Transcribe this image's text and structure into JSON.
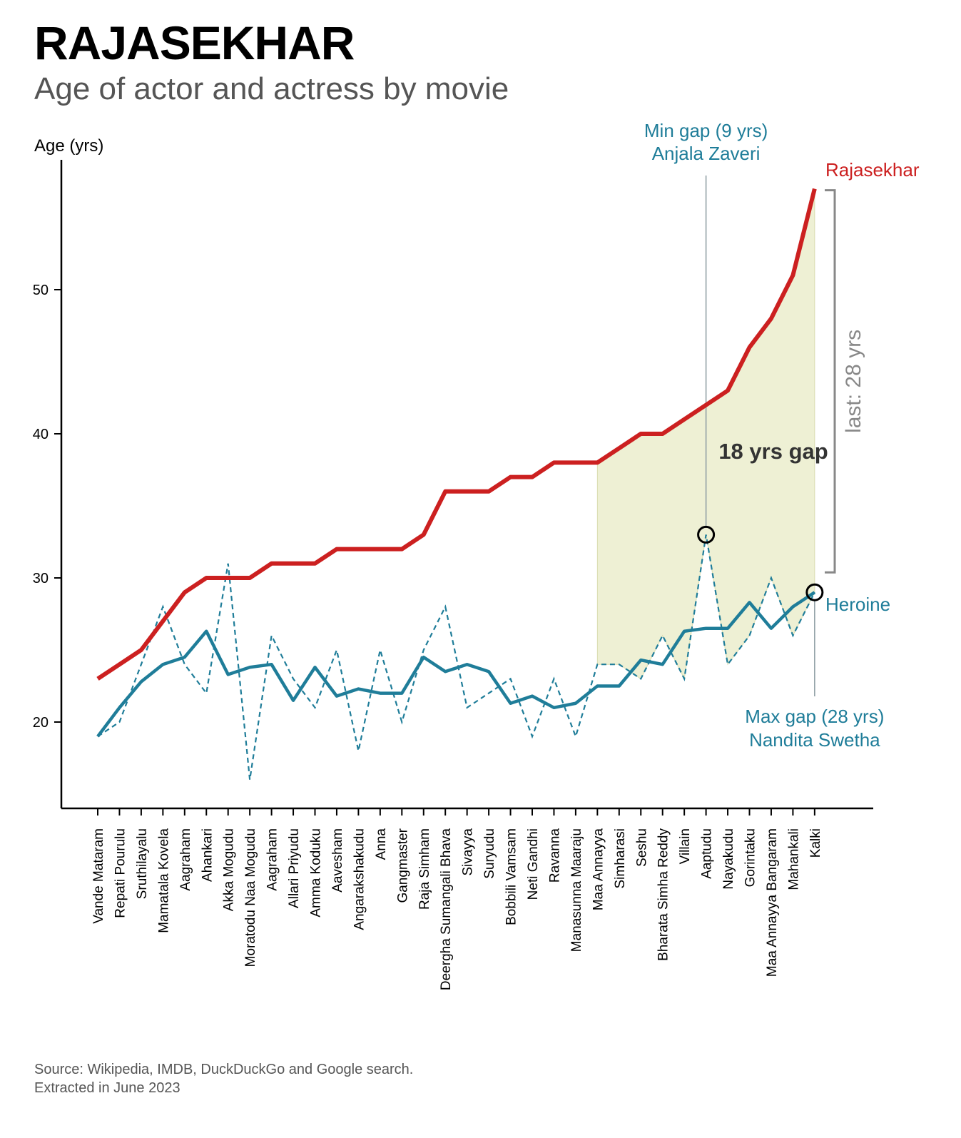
{
  "page": {
    "title": "RAJASEKHAR",
    "subtitle": "Age of actor and actress by movie",
    "source_line1": "Source: Wikipedia, IMDB, DuckDuckGo and Google search.",
    "source_line2": "Extracted in June 2023"
  },
  "colors": {
    "actor": "#cc2020",
    "heroine": "#1f7d99",
    "shade": "#eef0d4",
    "bracket": "#888888",
    "annotation": "#1f7d99",
    "gap_text": "#333333"
  },
  "chart_data": {
    "type": "line",
    "ylabel": "Age (yrs)",
    "xlabel": "",
    "ylim": [
      14.3,
      58.5
    ],
    "yticks": [
      20,
      30,
      40,
      50
    ],
    "categories": [
      "Vande Mataram",
      "Repati Pourulu",
      "Sruthilayalu",
      "Mamatala Kovela",
      "Aagraham",
      "Ahankari",
      "Akka Mogudu",
      "Moratodu Naa Mogudu",
      "Aagraham",
      "Allari Priyudu",
      "Amma Koduku",
      "Aavesham",
      "Angarakshakudu",
      "Anna",
      "Gangmaster",
      "Raja Simham",
      "Deergha Sumangali Bhava",
      "Sivayya",
      "Suryudu",
      "Bobbili Vamsam",
      "Neti Gandhi",
      "Ravanna",
      "Manasunna Maaraju",
      "Maa Annayya",
      "Simharasi",
      "Seshu",
      "Bharata Simha Reddy",
      "Villain",
      "Aaptudu",
      "Nayakudu",
      "Gorintaku",
      "Maa Annayya Bangaram",
      "Mahankali",
      "Kalki"
    ],
    "series": [
      {
        "name": "Rajasekhar",
        "style": "solid-thick",
        "values": [
          23,
          24,
          25,
          27,
          29,
          30,
          30,
          30,
          31,
          31,
          31,
          32,
          32,
          32,
          32,
          33,
          36,
          36,
          36,
          37,
          37,
          38,
          38,
          38,
          39,
          40,
          40,
          41,
          42,
          43,
          46,
          48,
          51,
          57
        ]
      },
      {
        "name": "Heroine",
        "style": "dashed",
        "values": [
          19,
          20,
          24,
          28,
          24,
          22,
          31,
          16,
          26,
          23,
          21,
          25,
          18,
          25,
          20,
          25,
          28,
          21,
          22,
          23,
          19,
          23,
          19,
          24,
          24,
          23,
          26,
          23,
          33,
          24,
          26,
          30,
          26,
          29
        ]
      },
      {
        "name": "Heroine (rolling average)",
        "style": "solid",
        "values": [
          19,
          21,
          22.8,
          24,
          24.5,
          26.3,
          23.3,
          23.8,
          24,
          21.5,
          23.8,
          21.8,
          22.3,
          22,
          22,
          24.5,
          23.5,
          24,
          23.5,
          21.3,
          21.8,
          21,
          21.3,
          22.5,
          22.5,
          24.3,
          24,
          26.3,
          26.5,
          26.5,
          28.3,
          26.5,
          28,
          29
        ]
      }
    ],
    "shaded_range": {
      "from_index": 23,
      "to_index": 33,
      "label": "18 yrs gap"
    },
    "annotations": {
      "min_gap": {
        "index": 28,
        "value": 33,
        "line1": "Min gap (9 yrs)",
        "line2": "Anjala Zaveri"
      },
      "max_gap": {
        "index": 33,
        "value": 29,
        "line1": "Max gap (28 yrs)",
        "line2": "Nandita Swetha"
      },
      "last_bracket": {
        "label": "last: 28 yrs"
      },
      "actor_label": "Rajasekhar",
      "heroine_label": "Heroine"
    },
    "grid": false,
    "legend": "inline labels at line ends"
  }
}
